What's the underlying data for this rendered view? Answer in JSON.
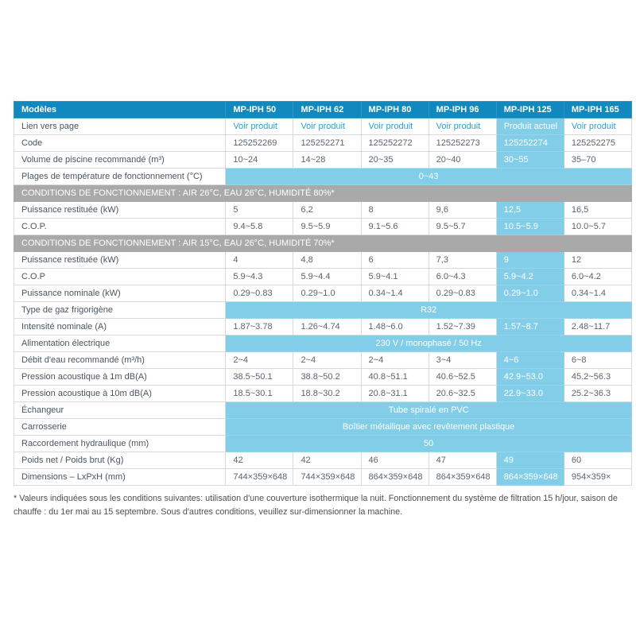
{
  "colors": {
    "header_bg": "#1189bf",
    "highlight_bg": "#82cde8",
    "section_bg": "#a9a9a9",
    "link_text": "#2ba0d0",
    "cell_border": "#d9d9d9"
  },
  "table": {
    "header": {
      "label": "Modèles",
      "models": [
        "MP-IPH 50",
        "MP-IPH 62",
        "MP-IPH 80",
        "MP-IPH 96",
        "MP-IPH 125",
        "MP-IPH 165"
      ]
    },
    "rows": [
      {
        "type": "links",
        "label": "Lien vers page",
        "values": [
          "Voir produit",
          "Voir produit",
          "Voir produit",
          "Voir produit",
          "Produit actuel",
          "Voir produit"
        ]
      },
      {
        "type": "normal",
        "label": "Code",
        "values": [
          "125252269",
          "125252271",
          "125252272",
          "125252273",
          "125252274",
          "125252275"
        ]
      },
      {
        "type": "normal",
        "label": "Volume de piscine recommandé (m³)",
        "values": [
          "10~24",
          "14~28",
          "20~35",
          "20~40",
          "30~55",
          "35–70"
        ]
      },
      {
        "type": "span",
        "label": "Plages de température de fonctionnement (°C)",
        "value": "0~43"
      },
      {
        "type": "section",
        "label": "CONDITIONS DE FONCTIONNEMENT : AIR 26°C, EAU 26°C, HUMIDITÉ 80%*"
      },
      {
        "type": "normal",
        "label": "Puissance restituée (kW)",
        "values": [
          "5",
          "6,2",
          "8",
          "9,6",
          "12,5",
          "16,5"
        ]
      },
      {
        "type": "normal",
        "label": "C.O.P.",
        "values": [
          "9.4~5.8",
          "9.5~5.9",
          "9.1~5.6",
          "9.5~5.7",
          "10.5~5.9",
          "10.0~5.7"
        ]
      },
      {
        "type": "section",
        "label": "CONDITIONS DE FONCTIONNEMENT : AIR 15°C, EAU 26°C, HUMIDITÉ 70%*"
      },
      {
        "type": "normal",
        "label": "Puissance restituée (kW)",
        "values": [
          "4",
          "4,8",
          "6",
          "7,3",
          "9",
          "12"
        ]
      },
      {
        "type": "normal",
        "label": "C.O.P",
        "values": [
          "5.9~4.3",
          "5.9~4.4",
          "5.9~4.1",
          "6.0~4.3",
          "5.9~4.2",
          "6.0~4.2"
        ]
      },
      {
        "type": "normal",
        "label": "Puissance nominale (kW)",
        "values": [
          "0.29~0.83",
          "0.29~1.0",
          "0.34~1.4",
          "0.29~0.83",
          "0.29~1.0",
          "0.34~1.4"
        ]
      },
      {
        "type": "span",
        "label": "Type de gaz frigorigène",
        "value": "R32"
      },
      {
        "type": "normal",
        "label": "Intensité nominale (A)",
        "values": [
          "1.87~3.78",
          "1.26~4.74",
          "1.48~6.0",
          "1.52~7.39",
          "1.57~8.7",
          "2.48~11.7"
        ]
      },
      {
        "type": "span",
        "label": "Alimentation électrique",
        "value": "230 V / monophasé / 50 Hz"
      },
      {
        "type": "normal",
        "label": "Débit d'eau recommandé (m³/h)",
        "values": [
          "2~4",
          "2~4",
          "2~4",
          "3~4",
          "4~6",
          "6~8"
        ]
      },
      {
        "type": "normal",
        "label": "Pression acoustique à 1m dB(A)",
        "values": [
          "38.5~50.1",
          "38.8~50.2",
          "40.8~51.1",
          "40.6~52.5",
          "42.9~53.0",
          "45.2~56.3"
        ]
      },
      {
        "type": "normal",
        "label": "Pression acoustique à 10m dB(A)",
        "values": [
          "18.5~30.1",
          "18.8~30.2",
          "20.8~31.1",
          "20.6~32.5",
          "22.9~33.0",
          "25.2~36.3"
        ]
      },
      {
        "type": "span",
        "label": "Échangeur",
        "value": "Tube spiralé en PVC"
      },
      {
        "type": "span",
        "label": "Carrosserie",
        "value": "Boîtier métallique avec revêtement plastique"
      },
      {
        "type": "span",
        "label": "Raccordement hydraulique (mm)",
        "value": "50"
      },
      {
        "type": "normal",
        "label": "Poids net / Poids brut (Kg)",
        "values": [
          "42",
          "42",
          "46",
          "47",
          "49",
          "60"
        ]
      },
      {
        "type": "normal",
        "label": "Dimensions – LxPxH (mm)",
        "values": [
          "744×359×648",
          "744×359×648",
          "864×359×648",
          "864×359×648",
          "864×359×648",
          "954×359×"
        ]
      }
    ]
  },
  "footnote": "* Valeurs indiquées sous les conditions suivantes: utilisation d'une couverture isothermique la nuit. Fonctionnement du système de filtration 15 h/jour, saison de chauffe : du 1er mai au 15 septembre. Sous d'autres conditions, veuillez sur-dimensionner la machine."
}
